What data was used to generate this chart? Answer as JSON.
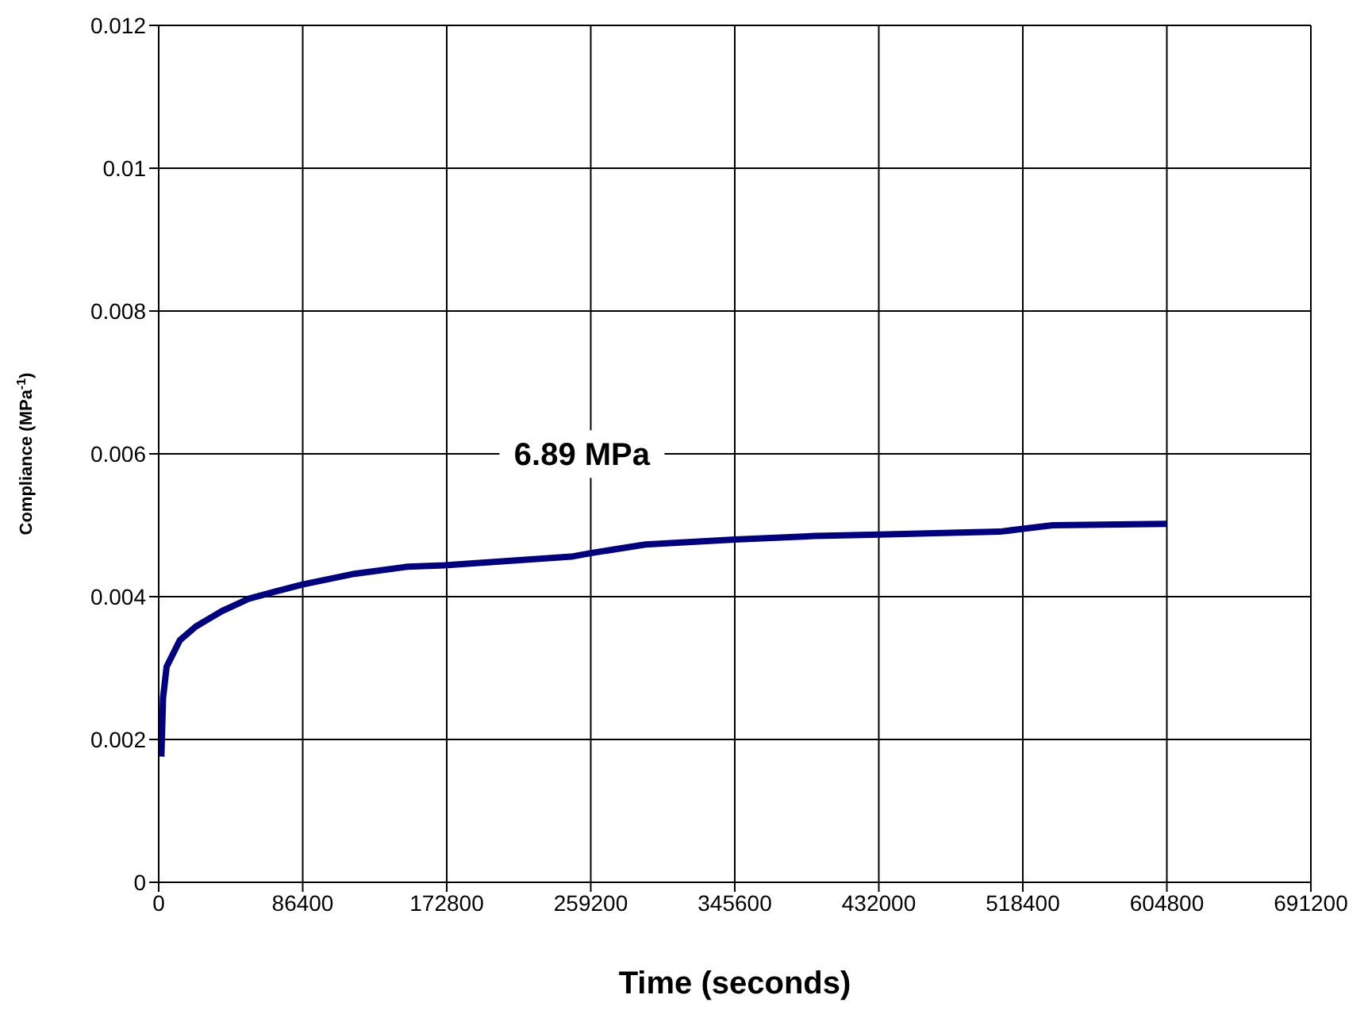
{
  "chart_data": {
    "type": "line",
    "xlabel": "Time (seconds)",
    "ylabel": "Compliance (MPa$^{-1}$)",
    "xlim": [
      0,
      691200
    ],
    "xticks": [
      0,
      86400,
      172800,
      259200,
      345600,
      432000,
      518400,
      604800,
      691200
    ],
    "ylim": [
      0,
      0.012
    ],
    "yticks": [
      0,
      0.002,
      0.004,
      0.006,
      0.008,
      0.01,
      0.012
    ],
    "grid": true,
    "legend": false,
    "marker": "none",
    "line_style": "solid",
    "series": [
      {
        "name": "6.89 MPa",
        "color": "#000080",
        "x": [
          1600,
          2600,
          4760,
          12700,
          22200,
          38100,
          54000,
          69800,
          86400,
          117400,
          149200,
          171400,
          247500,
          259200,
          292000,
          345600,
          393500,
          432000,
          504600,
          518400,
          536300,
          604800
        ],
        "values": [
          0.00176,
          0.00258,
          0.00302,
          0.00339,
          0.00358,
          0.0038,
          0.00397,
          0.00407,
          0.00417,
          0.00432,
          0.00442,
          0.00444,
          0.00456,
          0.00461,
          0.00473,
          0.0048,
          0.00485,
          0.00487,
          0.00491,
          0.00495,
          0.005,
          0.00502
        ]
      }
    ]
  }
}
